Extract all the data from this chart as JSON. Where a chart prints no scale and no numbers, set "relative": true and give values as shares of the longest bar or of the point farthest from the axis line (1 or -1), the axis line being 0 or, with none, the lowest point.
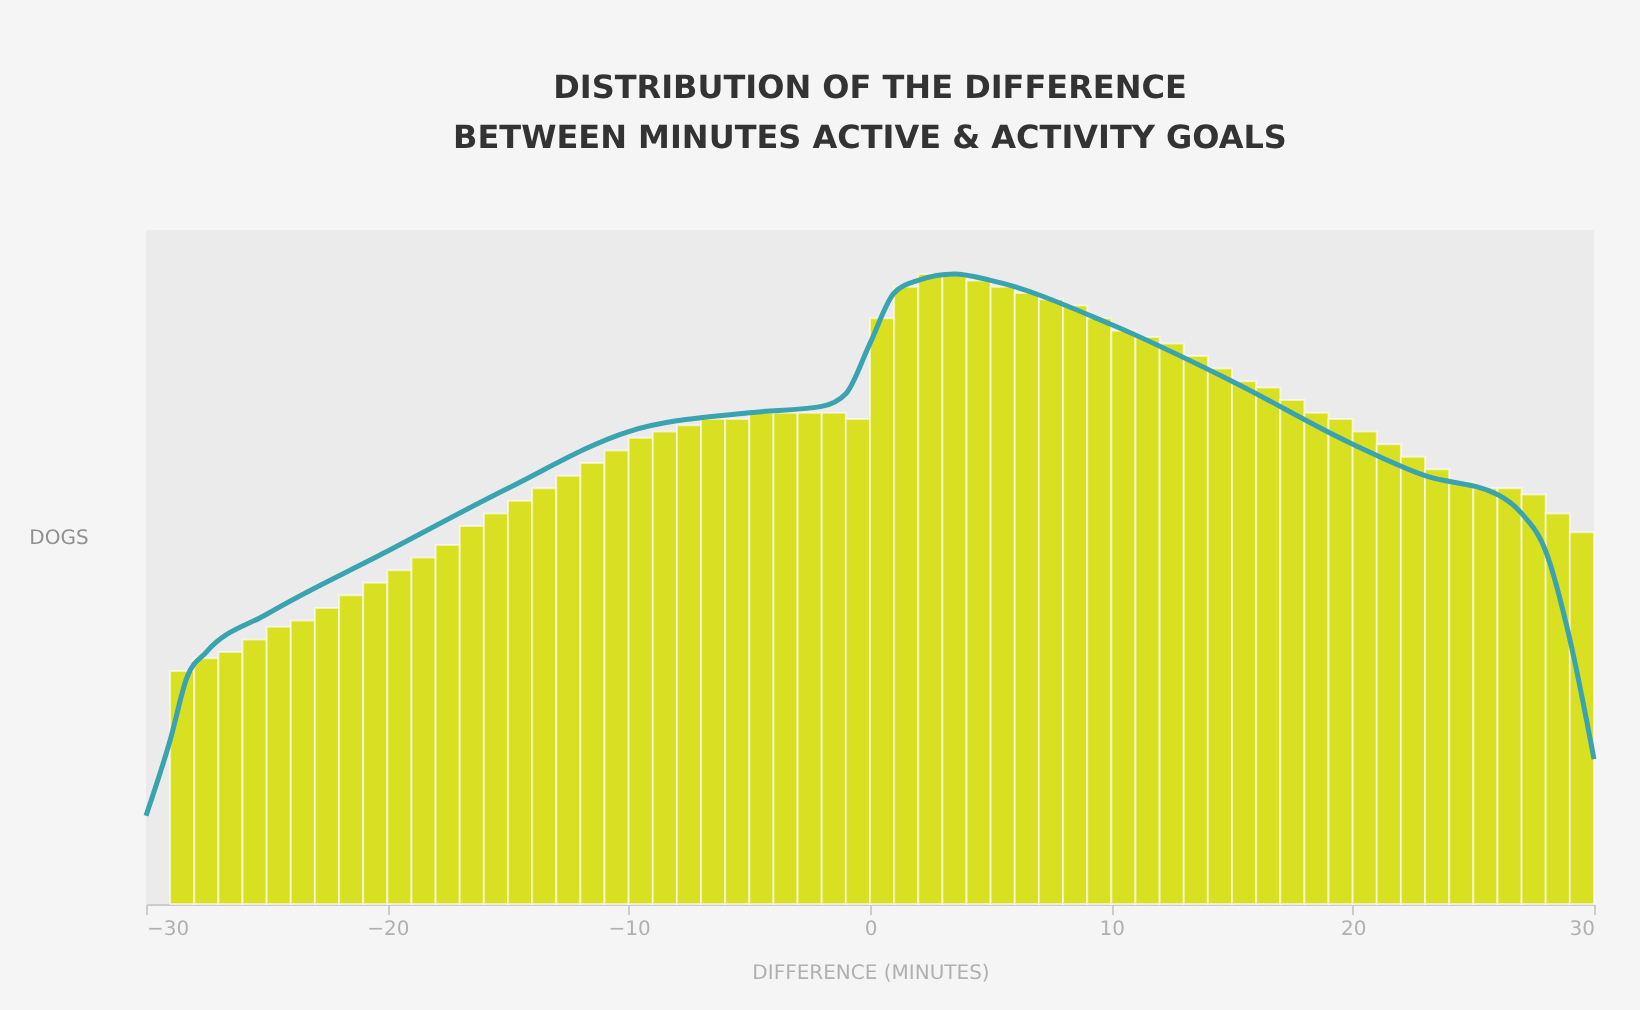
{
  "chart_data": {
    "type": "histogram",
    "title": "DISTRIBUTION OF THE DIFFERENCE\nBETWEEN MINUTES ACTIVE & ACTIVITY GOALS",
    "xlabel": "DIFFERENCE (MINUTES)",
    "ylabel": "DOGS",
    "relative": true,
    "grid": false,
    "xlim": [
      -30,
      30
    ],
    "xticks": [
      -30,
      -20,
      -10,
      0,
      10,
      20,
      30
    ],
    "bins": [
      -29,
      -28,
      -27,
      -26,
      -25,
      -24,
      -23,
      -22,
      -21,
      -20,
      -19,
      -18,
      -17,
      -16,
      -15,
      -14,
      -13,
      -12,
      -11,
      -10,
      -9,
      -8,
      -7,
      -6,
      -5,
      -4,
      -3,
      -2,
      -1,
      0,
      1,
      2,
      3,
      4,
      5,
      6,
      7,
      8,
      9,
      10,
      11,
      12,
      13,
      14,
      15,
      16,
      17,
      18,
      19,
      20,
      21,
      22,
      23,
      24,
      25,
      26,
      27,
      28,
      29,
      30
    ],
    "series": [
      {
        "color": "#d9e021",
        "values": [
          0.37,
          0.39,
          0.4,
          0.42,
          0.44,
          0.45,
          0.47,
          0.49,
          0.51,
          0.53,
          0.55,
          0.57,
          0.6,
          0.62,
          0.64,
          0.66,
          0.68,
          0.7,
          0.72,
          0.74,
          0.75,
          0.76,
          0.77,
          0.77,
          0.78,
          0.78,
          0.78,
          0.78,
          0.77,
          0.93,
          0.98,
          1.0,
          1.0,
          0.99,
          0.98,
          0.97,
          0.96,
          0.95,
          0.93,
          0.91,
          0.9,
          0.89,
          0.87,
          0.85,
          0.83,
          0.82,
          0.8,
          0.78,
          0.77,
          0.75,
          0.73,
          0.71,
          0.69,
          0.67,
          0.66,
          0.66,
          0.65,
          0.62,
          0.59
        ]
      },
      {
        "type": "line",
        "color": "#3aa3b0",
        "x": [
          -30,
          -29,
          -28.3,
          -27.5,
          -25,
          -20,
          -15,
          -10,
          -5,
          -2,
          -1,
          0,
          1,
          2,
          3.5,
          5,
          10,
          15,
          20,
          23,
          26,
          27,
          28,
          29,
          30
        ],
        "values": [
          0.14,
          0.26,
          0.36,
          0.4,
          0.46,
          0.56,
          0.66,
          0.75,
          0.78,
          0.79,
          0.81,
          0.89,
          0.97,
          0.99,
          1.0,
          0.99,
          0.92,
          0.83,
          0.73,
          0.68,
          0.65,
          0.62,
          0.56,
          0.42,
          0.23
        ]
      }
    ]
  }
}
